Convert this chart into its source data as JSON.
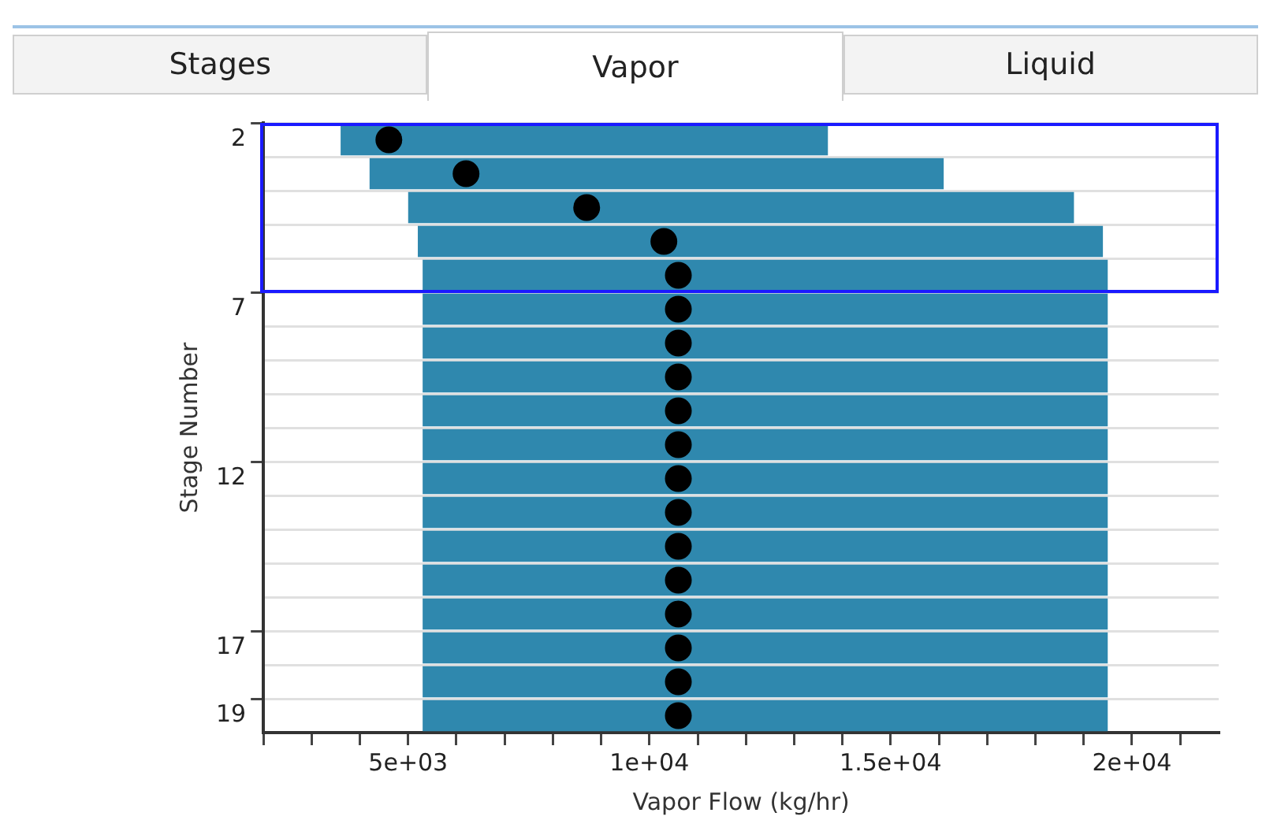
{
  "chart_data": {
    "type": "bar",
    "orientation": "horizontal",
    "xlabel": "Vapor Flow (kg/hr)",
    "ylabel": "Stage Number",
    "annotations": [
      "Stages",
      "Vapor",
      "Liquid"
    ],
    "categories": [
      "2",
      null,
      null,
      null,
      null,
      "7",
      null,
      null,
      null,
      null,
      "12",
      null,
      null,
      null,
      null,
      "17",
      null,
      "19"
    ],
    "series": [
      {
        "color": "#2f88ae",
        "base": [
          3600,
          4200,
          5000,
          5200,
          5300,
          5300,
          5300,
          5300,
          5300,
          5300,
          5300,
          5300,
          5300,
          5300,
          5300,
          5300,
          5300,
          5300
        ],
        "values": [
          10100,
          11900,
          13800,
          14200,
          14200,
          14200,
          14200,
          14200,
          14200,
          14200,
          14200,
          14200,
          14200,
          14200,
          14200,
          14200,
          14200,
          14200
        ]
      },
      {
        "type": "scatter",
        "color": "#000000",
        "values": [
          4600,
          6200,
          8700,
          10300,
          10600,
          10600,
          10600,
          10600,
          10600,
          10600,
          10600,
          10600,
          10600,
          10600,
          10600,
          10600,
          10600,
          10600
        ]
      }
    ],
    "marker": "circle",
    "grid": "y",
    "legend": false,
    "xlim": [
      2000,
      21800
    ],
    "xticks": [
      {
        "value": 2000,
        "label": null
      },
      {
        "value": 3000,
        "label": null
      },
      {
        "value": 4000,
        "label": null
      },
      {
        "value": 5000,
        "label": "5e+03"
      },
      {
        "value": 6000,
        "label": null
      },
      {
        "value": 7000,
        "label": null
      },
      {
        "value": 8000,
        "label": null
      },
      {
        "value": 9000,
        "label": null
      },
      {
        "value": 10000,
        "label": "1e+04"
      },
      {
        "value": 11000,
        "label": null
      },
      {
        "value": 12000,
        "label": null
      },
      {
        "value": 13000,
        "label": null
      },
      {
        "value": 14000,
        "label": null
      },
      {
        "value": 15000,
        "label": "1.5e+04"
      },
      {
        "value": 16000,
        "label": null
      },
      {
        "value": 17000,
        "label": null
      },
      {
        "value": 18000,
        "label": null
      },
      {
        "value": 19000,
        "label": null
      },
      {
        "value": 20000,
        "label": "2e+04"
      },
      {
        "value": 21000,
        "label": null
      }
    ]
  }
}
